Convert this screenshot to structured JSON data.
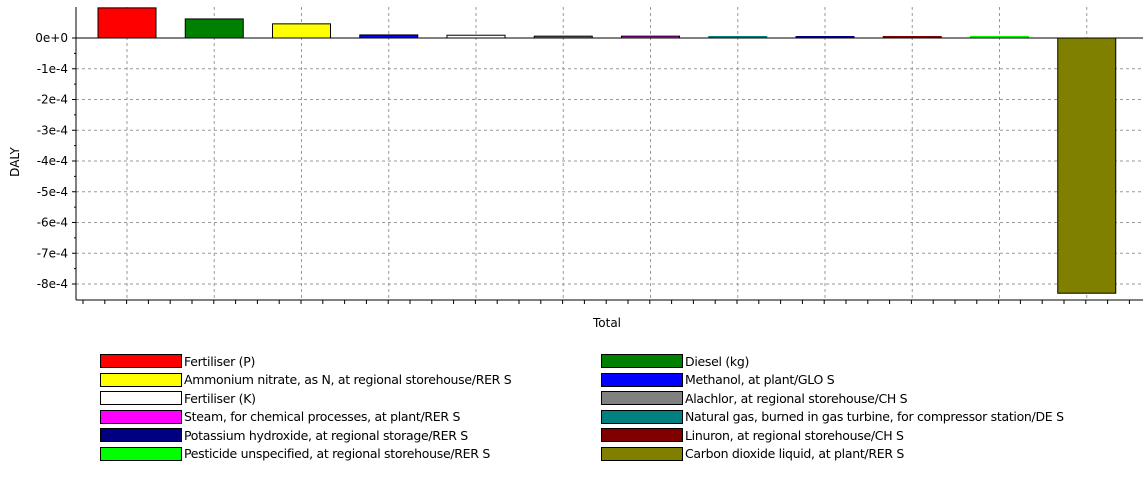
{
  "chart_data": {
    "type": "bar",
    "ylabel": "DALY",
    "xlabel": "Total",
    "ylim": [
      -0.00083,
      0.0001
    ],
    "yticks": [
      {
        "value": 0,
        "label": "0e+0"
      },
      {
        "value": -0.0001,
        "label": "-1e-4"
      },
      {
        "value": -0.0002,
        "label": "-2e-4"
      },
      {
        "value": -0.0003,
        "label": "-3e-4"
      },
      {
        "value": -0.0004,
        "label": "-4e-4"
      },
      {
        "value": -0.0005,
        "label": "-5e-4"
      },
      {
        "value": -0.0006,
        "label": "-6e-4"
      },
      {
        "value": -0.0007,
        "label": "-7e-4"
      },
      {
        "value": -0.0008,
        "label": "-8e-4"
      }
    ],
    "grid": true,
    "legend_position": "bottom",
    "series": [
      {
        "name": "Fertiliser (P)",
        "value": 9.8e-05,
        "color": "#ff0000"
      },
      {
        "name": "Diesel (kg)",
        "value": 6.2e-05,
        "color": "#008000"
      },
      {
        "name": "Ammonium nitrate, as N, at regional storehouse/RER S",
        "value": 4.6e-05,
        "color": "#ffff00"
      },
      {
        "name": "Methanol, at plant/GLO S",
        "value": 1e-05,
        "color": "#0000ff"
      },
      {
        "name": "Fertiliser (K)",
        "value": 9e-06,
        "color": "#ffffff"
      },
      {
        "name": "Alachlor, at regional storehouse/CH S",
        "value": 6e-06,
        "color": "#808080"
      },
      {
        "name": "Steam, for chemical processes, at plant/RER S",
        "value": 6e-06,
        "color": "#ff00ff"
      },
      {
        "name": "Natural gas, burned in gas turbine, for compressor station/DE S",
        "value": 3e-06,
        "color": "#008080"
      },
      {
        "name": "Potassium hydroxide, at regional storage/RER S",
        "value": 1e-06,
        "color": "#000080"
      },
      {
        "name": "Linuron, at regional storehouse/CH S",
        "value": 1e-06,
        "color": "#800000"
      },
      {
        "name": "Pesticide unspecified, at regional storehouse/RER S",
        "value": 1e-06,
        "color": "#00ff00"
      },
      {
        "name": "Carbon dioxide liquid, at plant/RER S",
        "value": -0.00083,
        "color": "#808000"
      }
    ]
  }
}
